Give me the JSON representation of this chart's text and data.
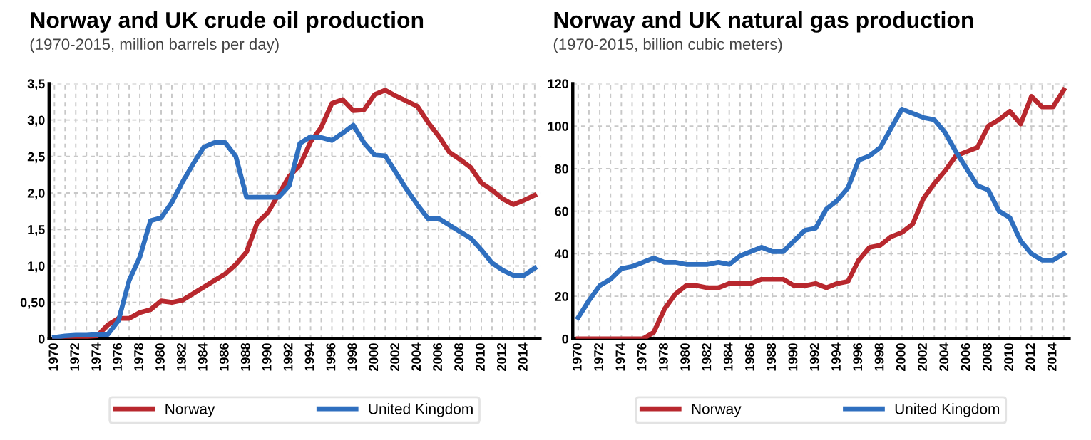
{
  "chart_data": [
    {
      "type": "line",
      "title": "Norway and UK crude oil production",
      "subtitle": "(1970-2015, million barrels per day)",
      "x": [
        1970,
        1971,
        1972,
        1973,
        1974,
        1975,
        1976,
        1977,
        1978,
        1979,
        1980,
        1981,
        1982,
        1983,
        1984,
        1985,
        1986,
        1987,
        1988,
        1989,
        1990,
        1991,
        1992,
        1993,
        1994,
        1995,
        1996,
        1997,
        1998,
        1999,
        2000,
        2001,
        2002,
        2003,
        2004,
        2005,
        2006,
        2007,
        2008,
        2009,
        2010,
        2011,
        2012,
        2013,
        2014,
        2015
      ],
      "series": [
        {
          "name": "Norway",
          "color": "#b8282e",
          "values": [
            0,
            0.01,
            0.03,
            0.03,
            0.04,
            0.19,
            0.28,
            0.28,
            0.36,
            0.4,
            0.52,
            0.5,
            0.53,
            0.62,
            0.71,
            0.8,
            0.89,
            1.02,
            1.19,
            1.59,
            1.73,
            1.98,
            2.23,
            2.38,
            2.7,
            2.9,
            3.23,
            3.28,
            3.13,
            3.14,
            3.35,
            3.41,
            3.33,
            3.26,
            3.19,
            2.97,
            2.78,
            2.56,
            2.46,
            2.35,
            2.14,
            2.04,
            1.92,
            1.84,
            1.9,
            1.97
          ]
        },
        {
          "name": "United Kingdom",
          "color": "#2f6fbf",
          "values": [
            0.02,
            0.04,
            0.05,
            0.05,
            0.06,
            0.06,
            0.25,
            0.8,
            1.12,
            1.62,
            1.66,
            1.87,
            2.15,
            2.4,
            2.63,
            2.69,
            2.69,
            2.5,
            1.94,
            1.94,
            1.94,
            1.94,
            2.1,
            2.68,
            2.77,
            2.76,
            2.72,
            2.82,
            2.93,
            2.69,
            2.52,
            2.51,
            2.28,
            2.05,
            1.84,
            1.65,
            1.65,
            1.56,
            1.47,
            1.38,
            1.22,
            1.04,
            0.94,
            0.87,
            0.87,
            0.97
          ]
        }
      ],
      "xlim": [
        1969.5,
        2015.5
      ],
      "xticks": [
        1970,
        {
          "value": 1971,
          "label": null
        },
        1972,
        {
          "value": 1973,
          "label": null
        },
        1974,
        {
          "value": 1975,
          "label": null
        },
        1976,
        {
          "value": 1977,
          "label": null
        },
        1978,
        {
          "value": 1979,
          "label": null
        },
        1980,
        {
          "value": 1981,
          "label": null
        },
        1982,
        {
          "value": 1983,
          "label": null
        },
        1984,
        {
          "value": 1985,
          "label": null
        },
        1986,
        {
          "value": 1987,
          "label": null
        },
        1988,
        {
          "value": 1989,
          "label": null
        },
        1990,
        {
          "value": 1991,
          "label": null
        },
        1992,
        {
          "value": 1993,
          "label": null
        },
        1994,
        {
          "value": 1995,
          "label": null
        },
        1996,
        {
          "value": 1997,
          "label": null
        },
        1998,
        {
          "value": 1999,
          "label": null
        },
        2000,
        {
          "value": 2001,
          "label": null
        },
        2002,
        {
          "value": 2003,
          "label": null
        },
        2004,
        {
          "value": 2005,
          "label": null
        },
        2006,
        {
          "value": 2007,
          "label": null
        },
        2008,
        {
          "value": 2009,
          "label": null
        },
        2010,
        {
          "value": 2011,
          "label": null
        },
        2012,
        {
          "value": 2013,
          "label": null
        },
        2014,
        {
          "value": 2015,
          "label": null
        }
      ],
      "ylim": [
        0,
        3.5
      ],
      "yticks": [
        0,
        {
          "value": 0.5,
          "label": "0,50"
        },
        {
          "value": 1.0,
          "label": "1,0"
        },
        {
          "value": 1.5,
          "label": "1,5"
        },
        {
          "value": 2.0,
          "label": "2,0"
        },
        {
          "value": 2.5,
          "label": "2,5"
        },
        {
          "value": 3.0,
          "label": "3,0"
        },
        {
          "value": 3.5,
          "label": "3,5"
        }
      ],
      "grid": true,
      "legend": "bottom",
      "line_style": "solid"
    },
    {
      "type": "line",
      "title": "Norway and UK natural gas production",
      "subtitle": "(1970-2015, billion cubic meters)",
      "x": [
        1970,
        1971,
        1972,
        1973,
        1974,
        1975,
        1976,
        1977,
        1978,
        1979,
        1980,
        1981,
        1982,
        1983,
        1984,
        1985,
        1986,
        1987,
        1988,
        1989,
        1990,
        1991,
        1992,
        1993,
        1994,
        1995,
        1996,
        1997,
        1998,
        1999,
        2000,
        2001,
        2002,
        2003,
        2004,
        2005,
        2006,
        2007,
        2008,
        2009,
        2010,
        2011,
        2012,
        2013,
        2014,
        2015
      ],
      "series": [
        {
          "name": "Norway",
          "color": "#b8282e",
          "values": [
            0,
            0,
            0,
            0,
            0,
            0,
            0,
            3,
            14,
            21,
            25,
            25,
            24,
            24,
            26,
            26,
            26,
            28,
            28,
            28,
            25,
            25,
            26,
            24,
            26,
            27,
            37,
            43,
            44,
            48,
            50,
            54,
            66,
            73,
            79,
            86,
            88,
            90,
            100,
            103,
            107,
            101,
            114,
            109,
            109,
            117
          ]
        },
        {
          "name": "United Kingdom",
          "color": "#2f6fbf",
          "values": [
            10,
            18,
            25,
            28,
            33,
            34,
            36,
            38,
            36,
            36,
            35,
            35,
            35,
            36,
            35,
            39,
            41,
            43,
            41,
            41,
            46,
            51,
            52,
            61,
            65,
            71,
            84,
            86,
            90,
            99,
            108,
            106,
            104,
            103,
            97,
            88,
            80,
            72,
            70,
            60,
            57,
            46,
            40,
            37,
            37,
            40
          ]
        }
      ],
      "xlim": [
        1969.5,
        2015.5
      ],
      "xticks": [
        1970,
        {
          "value": 1971,
          "label": null
        },
        1972,
        {
          "value": 1973,
          "label": null
        },
        1974,
        {
          "value": 1975,
          "label": null
        },
        1976,
        {
          "value": 1977,
          "label": null
        },
        1978,
        {
          "value": 1979,
          "label": null
        },
        1980,
        {
          "value": 1981,
          "label": null
        },
        1982,
        {
          "value": 1983,
          "label": null
        },
        1984,
        {
          "value": 1985,
          "label": null
        },
        1986,
        {
          "value": 1987,
          "label": null
        },
        1988,
        {
          "value": 1989,
          "label": null
        },
        1990,
        {
          "value": 1991,
          "label": null
        },
        1992,
        {
          "value": 1993,
          "label": null
        },
        1994,
        {
          "value": 1995,
          "label": null
        },
        1996,
        {
          "value": 1997,
          "label": null
        },
        1998,
        {
          "value": 1999,
          "label": null
        },
        2000,
        {
          "value": 2001,
          "label": null
        },
        2002,
        {
          "value": 2003,
          "label": null
        },
        2004,
        {
          "value": 2005,
          "label": null
        },
        2006,
        {
          "value": 2007,
          "label": null
        },
        2008,
        {
          "value": 2009,
          "label": null
        },
        2010,
        {
          "value": 2011,
          "label": null
        },
        2012,
        {
          "value": 2013,
          "label": null
        },
        2014,
        {
          "value": 2015,
          "label": null
        }
      ],
      "ylim": [
        0,
        120
      ],
      "yticks": [
        0,
        20,
        40,
        60,
        80,
        100,
        120
      ],
      "grid": true,
      "legend": "bottom",
      "line_style": "solid"
    }
  ]
}
